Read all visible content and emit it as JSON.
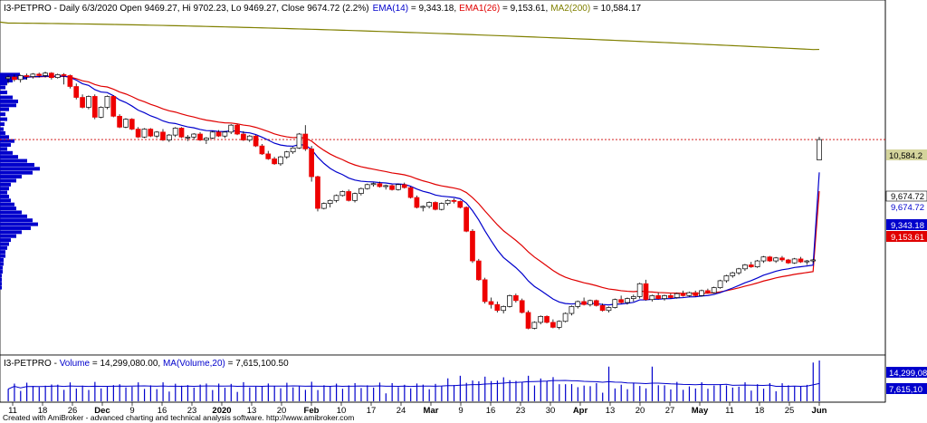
{
  "header": {
    "symbol": "I3-PETPRO - Daily 6/3/2020 Open 9469.27, Hi 9702.23, Lo 9469.27, Close 9674.72 (2.2%)",
    "ema14_label": "EMA(14)",
    "ema14_value": " = 9,343.18,",
    "ema26_label": "EMA1(26)",
    "ema26_value": " = 9,153.61,",
    "ma200_label": "MA2(200)",
    "ma200_value": " = 10,584.17"
  },
  "volume_header": {
    "symbol": "I3-PETPRO - ",
    "vol_label": "Volume",
    "vol_value": " = 14,299,080.00, ",
    "ma_label": "MA(Volume,20)",
    "ma_value": " = 7,615,100.50"
  },
  "footer": "Created with AmiBroker - advanced charting and technical analysis software. http://www.amibroker.com",
  "axis_tags": {
    "ma200": "10,584.2",
    "close": "9,674.72",
    "close2": "9,674.72",
    "ema14": "9,343.18",
    "ema26": "9,153.61",
    "vol": "14,299,08",
    "volma": "7,615,10"
  },
  "colors": {
    "up": "#ffffff",
    "down": "#ee0000",
    "ema14": "#0000cc",
    "ema26": "#e00000",
    "ma200": "#808000",
    "profile": "#0000cc",
    "tag_ma200": "#d4d49c",
    "tag_blue": "#0000cc",
    "tag_red": "#e00000"
  },
  "chart_data": {
    "type": "candlestick",
    "symbol": "I3-PETPRO",
    "x_tick_labels": [
      "11",
      "18",
      "26",
      "Dec",
      "9",
      "16",
      "23",
      "2020",
      "13",
      "20",
      "Feb",
      "10",
      "17",
      "24",
      "Mar",
      "9",
      "16",
      "23",
      "30",
      "Apr",
      "13",
      "20",
      "27",
      "May",
      "11",
      "18",
      "25",
      "Jun"
    ],
    "bold_tick_labels": [
      "Dec",
      "2020",
      "Feb",
      "Mar",
      "Apr",
      "May",
      "Jun"
    ],
    "last_bar": {
      "open": 9469.27,
      "high": 9702.23,
      "low": 9469.27,
      "close": 9674.72,
      "change_pct": 2.2
    },
    "indicators": [
      {
        "name": "EMA(14)",
        "last": 9343.18
      },
      {
        "name": "EMA1(26)",
        "last": 9153.61
      },
      {
        "name": "MA2(200)",
        "last": 10584.17
      }
    ],
    "candles": [
      [
        10290,
        10320,
        10240,
        10305
      ],
      [
        10305,
        10330,
        10260,
        10280
      ],
      [
        10280,
        10330,
        10250,
        10320
      ],
      [
        10320,
        10340,
        10280,
        10310
      ],
      [
        10310,
        10345,
        10290,
        10335
      ],
      [
        10335,
        10350,
        10300,
        10320
      ],
      [
        10320,
        10360,
        10300,
        10345
      ],
      [
        10345,
        10355,
        10280,
        10300
      ],
      [
        10300,
        10340,
        10290,
        10330
      ],
      [
        10330,
        10345,
        10230,
        10320
      ],
      [
        10320,
        10330,
        10190,
        10210
      ],
      [
        10210,
        10240,
        10080,
        10100
      ],
      [
        10100,
        10130,
        9990,
        10000
      ],
      [
        10000,
        10120,
        9980,
        10110
      ],
      [
        10110,
        10130,
        9880,
        9900
      ],
      [
        9900,
        10010,
        9890,
        10000
      ],
      [
        10000,
        10120,
        9980,
        10110
      ],
      [
        10110,
        10120,
        9900,
        9910
      ],
      [
        9910,
        9930,
        9790,
        9800
      ],
      [
        9800,
        9890,
        9790,
        9880
      ],
      [
        9880,
        9890,
        9770,
        9780
      ],
      [
        9780,
        9800,
        9690,
        9700
      ],
      [
        9700,
        9790,
        9690,
        9780
      ],
      [
        9780,
        9790,
        9700,
        9710
      ],
      [
        9710,
        9760,
        9690,
        9750
      ],
      [
        9750,
        9780,
        9660,
        9670
      ],
      [
        9670,
        9730,
        9650,
        9720
      ],
      [
        9720,
        9800,
        9700,
        9790
      ],
      [
        9790,
        9800,
        9690,
        9700
      ],
      [
        9700,
        9720,
        9660,
        9700
      ],
      [
        9700,
        9740,
        9670,
        9730
      ],
      [
        9730,
        9750,
        9660,
        9670
      ],
      [
        9670,
        9700,
        9630,
        9690
      ],
      [
        9690,
        9760,
        9680,
        9750
      ],
      [
        9750,
        9770,
        9700,
        9710
      ],
      [
        9710,
        9760,
        9690,
        9750
      ],
      [
        9750,
        9830,
        9730,
        9820
      ],
      [
        9820,
        9830,
        9720,
        9730
      ],
      [
        9730,
        9760,
        9660,
        9670
      ],
      [
        9670,
        9720,
        9650,
        9710
      ],
      [
        9710,
        9720,
        9600,
        9610
      ],
      [
        9610,
        9630,
        9520,
        9530
      ],
      [
        9530,
        9560,
        9470,
        9480
      ],
      [
        9480,
        9500,
        9420,
        9430
      ],
      [
        9430,
        9510,
        9410,
        9500
      ],
      [
        9500,
        9560,
        9480,
        9550
      ],
      [
        9550,
        9600,
        9530,
        9590
      ],
      [
        9590,
        9740,
        9580,
        9730
      ],
      [
        9730,
        9820,
        9560,
        9580
      ],
      [
        9580,
        9610,
        9250,
        9300
      ],
      [
        9300,
        9310,
        8950,
        8980
      ],
      [
        8980,
        9040,
        8970,
        9030
      ],
      [
        9030,
        9070,
        8990,
        9060
      ],
      [
        9060,
        9120,
        9040,
        9110
      ],
      [
        9110,
        9160,
        9100,
        9150
      ],
      [
        9150,
        9170,
        9050,
        9060
      ],
      [
        9060,
        9140,
        9040,
        9130
      ],
      [
        9130,
        9190,
        9110,
        9180
      ],
      [
        9180,
        9230,
        9170,
        9220
      ],
      [
        9220,
        9240,
        9200,
        9230
      ],
      [
        9230,
        9250,
        9190,
        9200
      ],
      [
        9200,
        9220,
        9170,
        9210
      ],
      [
        9210,
        9220,
        9160,
        9170
      ],
      [
        9170,
        9230,
        9160,
        9220
      ],
      [
        9220,
        9240,
        9180,
        9190
      ],
      [
        9190,
        9200,
        9080,
        9090
      ],
      [
        9090,
        9110,
        8980,
        8990
      ],
      [
        8990,
        9010,
        8950,
        9000
      ],
      [
        9000,
        9050,
        8980,
        9040
      ],
      [
        9040,
        9050,
        8960,
        8970
      ],
      [
        8970,
        9040,
        8960,
        9030
      ],
      [
        9030,
        9070,
        9010,
        9060
      ],
      [
        9060,
        9080,
        9030,
        9050
      ],
      [
        9050,
        9060,
        8980,
        8990
      ],
      [
        8990,
        9000,
        8740,
        8750
      ],
      [
        8750,
        8770,
        8430,
        8450
      ],
      [
        8450,
        8470,
        8250,
        8260
      ],
      [
        8260,
        8280,
        8020,
        8040
      ],
      [
        8040,
        8080,
        7970,
        8010
      ],
      [
        8010,
        8040,
        7930,
        7950
      ],
      [
        7950,
        8000,
        7920,
        7990
      ],
      [
        7990,
        8110,
        7980,
        8100
      ],
      [
        8100,
        8120,
        8030,
        8050
      ],
      [
        8050,
        8070,
        7920,
        7930
      ],
      [
        7930,
        7950,
        7760,
        7770
      ],
      [
        7770,
        7840,
        7760,
        7830
      ],
      [
        7830,
        7900,
        7810,
        7890
      ],
      [
        7890,
        7900,
        7820,
        7830
      ],
      [
        7830,
        7860,
        7770,
        7780
      ],
      [
        7780,
        7850,
        7760,
        7840
      ],
      [
        7840,
        7930,
        7830,
        7920
      ],
      [
        7920,
        8000,
        7900,
        7990
      ],
      [
        7990,
        8050,
        7970,
        8040
      ],
      [
        8040,
        8080,
        8000,
        8010
      ],
      [
        8010,
        8060,
        7990,
        8050
      ],
      [
        8050,
        8060,
        7990,
        8000
      ],
      [
        8000,
        8020,
        7940,
        7950
      ],
      [
        7950,
        7990,
        7930,
        7980
      ],
      [
        7980,
        8070,
        7970,
        8060
      ],
      [
        8060,
        8100,
        8020,
        8030
      ],
      [
        8030,
        8080,
        8010,
        8070
      ],
      [
        8070,
        8110,
        8040,
        8090
      ],
      [
        8090,
        8230,
        8070,
        8220
      ],
      [
        8220,
        8260,
        8050,
        8060
      ],
      [
        8060,
        8110,
        8040,
        8100
      ],
      [
        8100,
        8130,
        8060,
        8070
      ],
      [
        8070,
        8110,
        8050,
        8100
      ],
      [
        8100,
        8120,
        8070,
        8080
      ],
      [
        8080,
        8130,
        8070,
        8120
      ],
      [
        8120,
        8150,
        8090,
        8100
      ],
      [
        8100,
        8140,
        8090,
        8130
      ],
      [
        8130,
        8150,
        8090,
        8100
      ],
      [
        8100,
        8160,
        8090,
        8150
      ],
      [
        8150,
        8170,
        8120,
        8130
      ],
      [
        8130,
        8190,
        8120,
        8180
      ],
      [
        8180,
        8260,
        8170,
        8250
      ],
      [
        8250,
        8310,
        8230,
        8300
      ],
      [
        8300,
        8340,
        8280,
        8330
      ],
      [
        8330,
        8380,
        8310,
        8370
      ],
      [
        8370,
        8420,
        8350,
        8410
      ],
      [
        8410,
        8440,
        8380,
        8390
      ],
      [
        8390,
        8460,
        8380,
        8450
      ],
      [
        8450,
        8500,
        8430,
        8490
      ],
      [
        8490,
        8500,
        8440,
        8450
      ],
      [
        8450,
        8490,
        8430,
        8480
      ],
      [
        8480,
        8500,
        8440,
        8460
      ],
      [
        8460,
        8470,
        8420,
        8430
      ],
      [
        8430,
        8480,
        8420,
        8470
      ],
      [
        8470,
        8490,
        8430,
        8440
      ],
      [
        8440,
        8460,
        8410,
        8450
      ],
      [
        8450,
        8470,
        8430,
        8460
      ],
      [
        9469.27,
        9702.23,
        9469.27,
        9674.72
      ]
    ],
    "volume": {
      "last": 14299080.0,
      "ma20_last": 7615100.5
    }
  }
}
